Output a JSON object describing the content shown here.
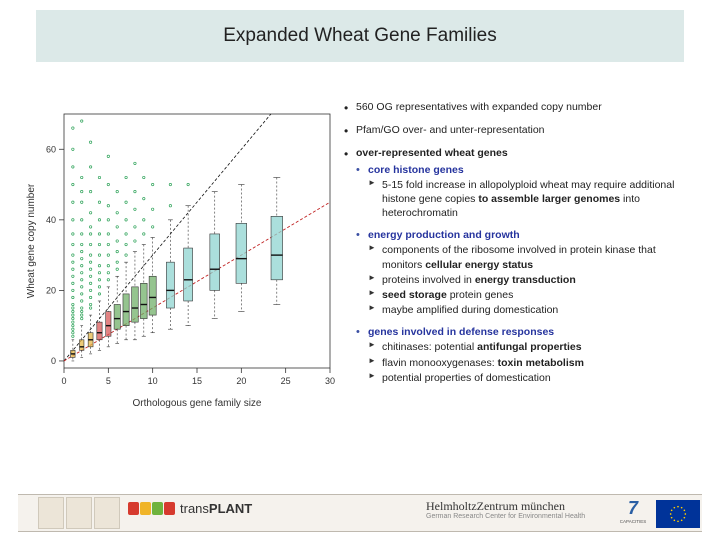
{
  "title": "Expanded Wheat Gene Families",
  "chart": {
    "type": "boxplot",
    "xlabel": "Orthologous gene family size",
    "ylabel": "Wheat gene copy number",
    "xlim": [
      0,
      30
    ],
    "ylim": [
      -2,
      70
    ],
    "xticks": [
      0,
      5,
      10,
      15,
      20,
      25,
      30
    ],
    "yticks": [
      0,
      20,
      40,
      60
    ],
    "background": "#ffffff",
    "box_border": "#333333",
    "box_border_width": 0.6,
    "whisker_dash": "2,2",
    "lines": [
      {
        "type": "line",
        "x0": 0,
        "y0": 0,
        "x1": 28,
        "y1": 84,
        "color": "#111111",
        "width": 0.8,
        "dash": "3,2"
      },
      {
        "type": "line",
        "x0": 0,
        "y0": 0,
        "x1": 30,
        "y1": 45,
        "color": "#c02020",
        "width": 0.9,
        "dash": "3,2"
      }
    ],
    "outlier": {
      "color": "#2fa35a",
      "size": 1.2
    },
    "boxes": [
      {
        "x": 1,
        "w": 0.5,
        "q1": 1,
        "med": 2,
        "q3": 3,
        "lo": 0,
        "hi": 6,
        "fill": "#e6b84a",
        "out": [
          7,
          8,
          9,
          10,
          11,
          12,
          13,
          14,
          15,
          16,
          18,
          20,
          22,
          24,
          26,
          28,
          30,
          33,
          36,
          40,
          45,
          50,
          55,
          60,
          66
        ]
      },
      {
        "x": 2,
        "w": 0.5,
        "q1": 3,
        "med": 4,
        "q3": 6,
        "lo": 1,
        "hi": 10,
        "fill": "#e6b84a",
        "out": [
          12,
          13,
          14,
          15,
          17,
          19,
          21,
          23,
          25,
          27,
          29,
          31,
          33,
          36,
          40,
          45,
          48,
          52,
          68
        ]
      },
      {
        "x": 3,
        "w": 0.55,
        "q1": 4,
        "med": 6,
        "q3": 8,
        "lo": 2,
        "hi": 13,
        "fill": "#e6b84a",
        "out": [
          15,
          16,
          18,
          20,
          22,
          24,
          26,
          28,
          30,
          33,
          36,
          38,
          42,
          48,
          55,
          62
        ]
      },
      {
        "x": 4,
        "w": 0.6,
        "q1": 6,
        "med": 8,
        "q3": 11,
        "lo": 3,
        "hi": 17,
        "fill": "#d85a5a",
        "out": [
          19,
          21,
          23,
          25,
          27,
          30,
          33,
          36,
          40,
          45,
          52
        ]
      },
      {
        "x": 5,
        "w": 0.6,
        "q1": 7,
        "med": 10,
        "q3": 14,
        "lo": 4,
        "hi": 21,
        "fill": "#d85a5a",
        "out": [
          23,
          25,
          27,
          30,
          33,
          36,
          40,
          44,
          50,
          58
        ]
      },
      {
        "x": 6,
        "w": 0.7,
        "q1": 9,
        "med": 12,
        "q3": 16,
        "lo": 5,
        "hi": 24,
        "fill": "#71b06a",
        "out": [
          26,
          28,
          31,
          34,
          38,
          42,
          48
        ]
      },
      {
        "x": 7,
        "w": 0.7,
        "q1": 10,
        "med": 14,
        "q3": 19,
        "lo": 6,
        "hi": 28,
        "fill": "#71b06a",
        "out": [
          30,
          33,
          36,
          40,
          45,
          52
        ]
      },
      {
        "x": 8,
        "w": 0.75,
        "q1": 11,
        "med": 15,
        "q3": 21,
        "lo": 6,
        "hi": 31,
        "fill": "#71b06a",
        "out": [
          34,
          38,
          43,
          48,
          56
        ]
      },
      {
        "x": 9,
        "w": 0.75,
        "q1": 12,
        "med": 16,
        "q3": 22,
        "lo": 7,
        "hi": 33,
        "fill": "#71b06a",
        "out": [
          36,
          40,
          46,
          52
        ]
      },
      {
        "x": 10,
        "w": 0.8,
        "q1": 13,
        "med": 18,
        "q3": 24,
        "lo": 8,
        "hi": 35,
        "fill": "#71b06a",
        "out": [
          38,
          43,
          50
        ]
      },
      {
        "x": 12,
        "w": 0.9,
        "q1": 15,
        "med": 20,
        "q3": 28,
        "lo": 9,
        "hi": 40,
        "fill": "#8fd4d0",
        "out": [
          44,
          50
        ]
      },
      {
        "x": 14,
        "w": 1.0,
        "q1": 17,
        "med": 23,
        "q3": 32,
        "lo": 10,
        "hi": 44,
        "fill": "#8fd4d0",
        "out": [
          50
        ]
      },
      {
        "x": 17,
        "w": 1.1,
        "q1": 20,
        "med": 26,
        "q3": 36,
        "lo": 12,
        "hi": 48,
        "fill": "#8fd4d0",
        "out": []
      },
      {
        "x": 20,
        "w": 1.2,
        "q1": 22,
        "med": 29,
        "q3": 39,
        "lo": 14,
        "hi": 50,
        "fill": "#8fd4d0",
        "out": []
      },
      {
        "x": 24,
        "w": 1.3,
        "q1": 23,
        "med": 30,
        "q3": 41,
        "lo": 16,
        "hi": 52,
        "fill": "#8fd4d0",
        "out": []
      }
    ]
  },
  "bullets": {
    "i1": "560 OG representatives with expanded copy number",
    "i2": "Pfam/GO over- and unter-representation",
    "i3": "over-represented wheat genes",
    "i3a": "core histone genes",
    "i3a1a": "5-15 fold increase in allopolyploid wheat may require additional histone gene copies ",
    "i3a1b": "to assemble larger genomes",
    "i3a1c": " into heterochromatin",
    "i3b": "energy production and growth",
    "i3b1a": "components of the ribosome involved in protein kinase that monitors ",
    "i3b1b": "cellular energy status",
    "i3b2a": "proteins involved in ",
    "i3b2b": "energy transduction",
    "i3b3a": "seed storage",
    "i3b3b": " protein genes",
    "i3b4": "maybe amplified during domestication",
    "i3c": "genes involved in defense responses",
    "i3c1a": "chitinases: potential ",
    "i3c1b": "antifungal properties",
    "i3c2a": "flavin monooxygenases: ",
    "i3c2b": "toxin metabolism",
    "i3c3": "potential properties of domestication"
  },
  "footer": {
    "tp_colors": [
      "#d63a2e",
      "#f0b428",
      "#6fb33e",
      "#d63a2e"
    ],
    "tp_pre": "trans",
    "tp_post": "PLANT",
    "helm_main": "HelmholtzZentrum münchen",
    "helm_sub": "German Research Center for Environmental Health",
    "fp7_top": "7",
    "fp7_sub": "CAPACITIES"
  }
}
